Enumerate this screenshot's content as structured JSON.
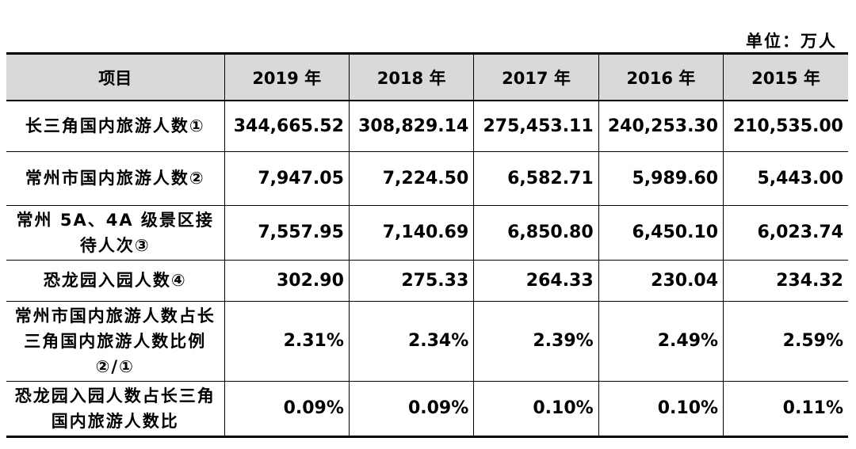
{
  "unit_label": "单位：万人",
  "table": {
    "headers": [
      "项目",
      "2019 年",
      "2018 年",
      "2017 年",
      "2016 年",
      "2015 年"
    ],
    "rows": [
      {
        "label": "长三角国内旅游人数①",
        "values": [
          "344,665.52",
          "308,829.14",
          "275,453.11",
          "240,253.30",
          "210,535.00"
        ]
      },
      {
        "label": "常州市国内旅游人数②",
        "values": [
          "7,947.05",
          "7,224.50",
          "6,582.71",
          "5,989.60",
          "5,443.00"
        ]
      },
      {
        "label": "常州 5A、4A 级景区接待人次③",
        "values": [
          "7,557.95",
          "7,140.69",
          "6,850.80",
          "6,450.10",
          "6,023.74"
        ]
      },
      {
        "label": "恐龙园入园人数④",
        "values": [
          "302.90",
          "275.33",
          "264.33",
          "230.04",
          "234.32"
        ]
      },
      {
        "label": "常州市国内旅游人数占长三角国内旅游人数比例②/①",
        "values": [
          "2.31%",
          "2.34%",
          "2.39%",
          "2.49%",
          "2.59%"
        ]
      },
      {
        "label": "恐龙园入园人数占长三角国内旅游人数比",
        "values": [
          "0.09%",
          "0.09%",
          "0.10%",
          "0.10%",
          "0.11%"
        ]
      }
    ]
  }
}
